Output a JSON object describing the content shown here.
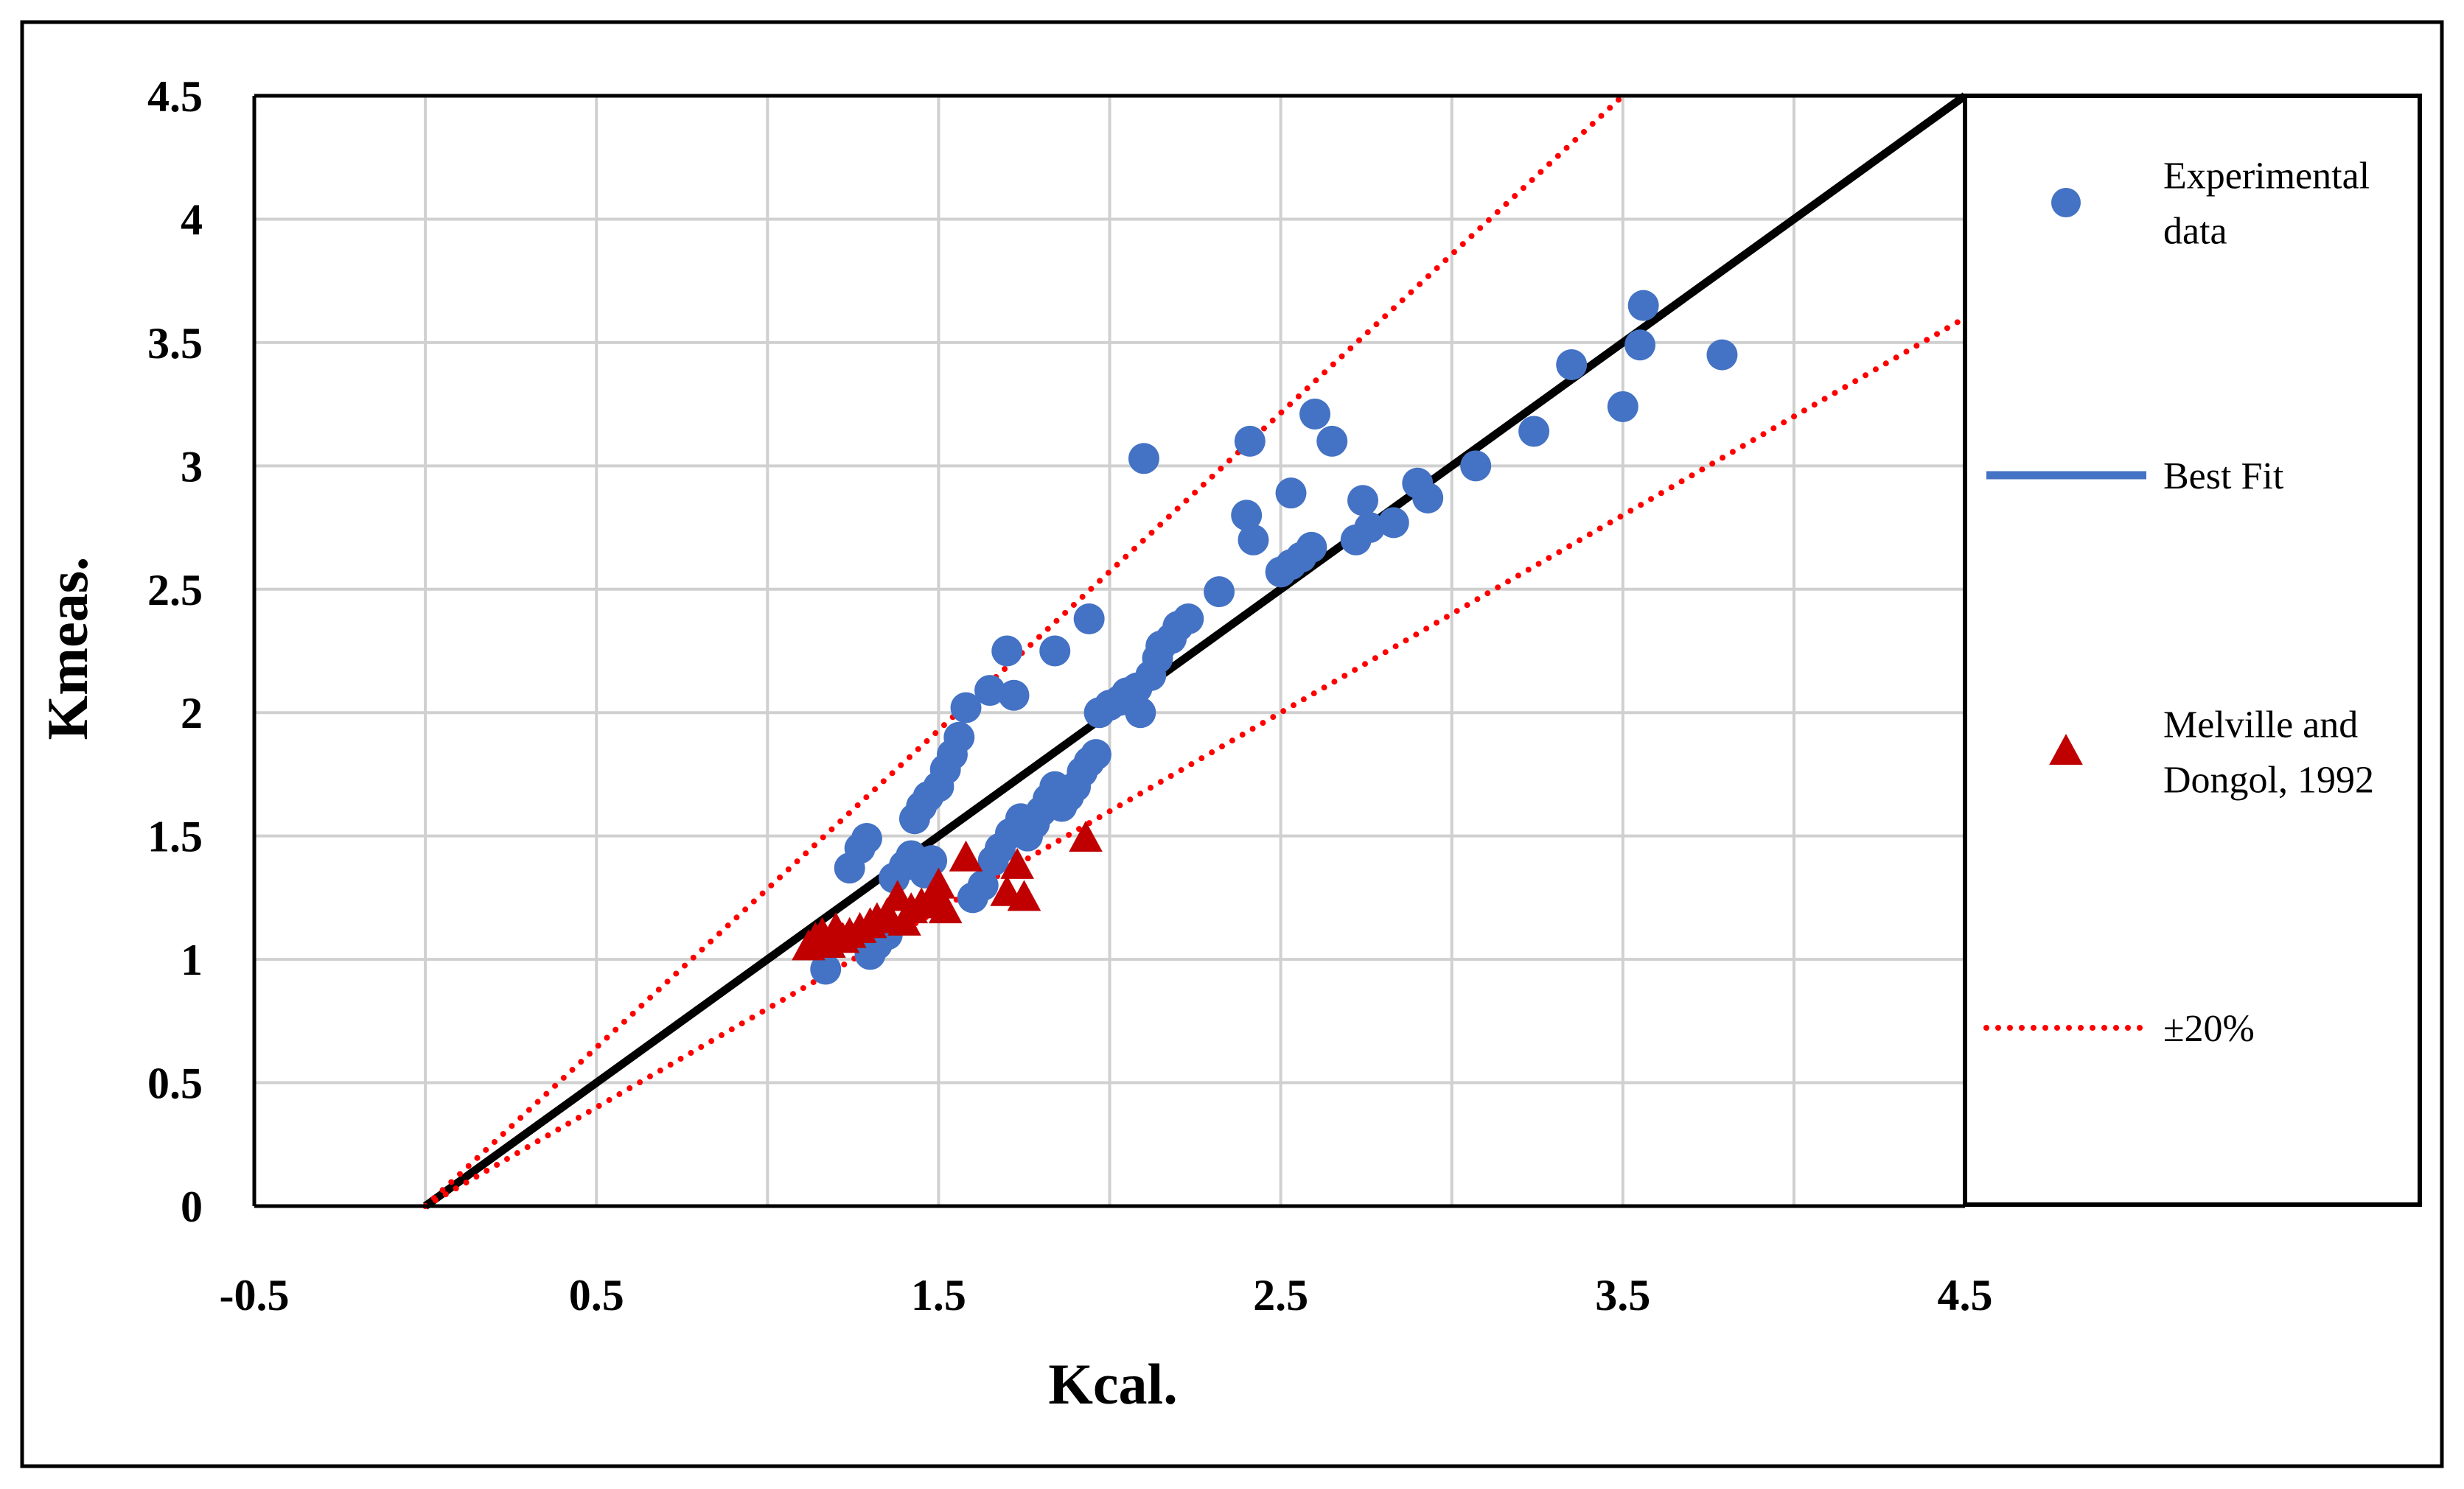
{
  "colors": {
    "frame": "#000000",
    "grid": "#d0d0d0",
    "experimental": "#4472c4",
    "melville": "#c00000",
    "best_fit_line": "#000000",
    "best_fit_legend": "#4472c4",
    "band": "#ff0000"
  },
  "chart_data": {
    "type": "scatter",
    "title": "",
    "xlabel": "Kcal.",
    "ylabel": "Kmeas.",
    "xlim": [
      -0.5,
      4.5
    ],
    "ylim": [
      0,
      4.5
    ],
    "grid": true,
    "legend_position": "right",
    "x_tick_labels": [
      "-0.5",
      "0.5",
      "1.5",
      "2.5",
      "3.5",
      "4.5"
    ],
    "y_tick_labels": [
      "0",
      "0.5",
      "1",
      "1.5",
      "2",
      "2.5",
      "3",
      "3.5",
      "4",
      "4.5"
    ],
    "legend": [
      {
        "key": "experimental",
        "lines": [
          "Experimental",
          "data"
        ]
      },
      {
        "key": "best_fit",
        "lines": [
          "Best Fit"
        ]
      },
      {
        "key": "melville",
        "lines": [
          "Melville and",
          "Dongol, 1992"
        ]
      },
      {
        "key": "band",
        "lines": [
          "±20%"
        ]
      }
    ],
    "series": [
      {
        "name": "Experimental data",
        "key": "experimental",
        "marker": "circle",
        "points": [
          [
            1.17,
            0.96
          ],
          [
            1.24,
            1.37
          ],
          [
            1.27,
            1.45
          ],
          [
            1.29,
            1.49
          ],
          [
            1.3,
            1.02
          ],
          [
            1.32,
            1.06
          ],
          [
            1.35,
            1.1
          ],
          [
            1.37,
            1.33
          ],
          [
            1.4,
            1.38
          ],
          [
            1.42,
            1.42
          ],
          [
            1.43,
            1.57
          ],
          [
            1.45,
            1.62
          ],
          [
            1.47,
            1.66
          ],
          [
            1.5,
            1.7
          ],
          [
            1.52,
            1.77
          ],
          [
            1.54,
            1.83
          ],
          [
            1.56,
            1.9
          ],
          [
            1.58,
            2.02
          ],
          [
            1.46,
            1.35
          ],
          [
            1.48,
            1.4
          ],
          [
            1.6,
            1.25
          ],
          [
            1.63,
            1.3
          ],
          [
            1.65,
            2.09
          ],
          [
            1.66,
            1.4
          ],
          [
            1.68,
            1.45
          ],
          [
            1.7,
            2.25
          ],
          [
            1.71,
            1.51
          ],
          [
            1.72,
            2.07
          ],
          [
            1.74,
            1.57
          ],
          [
            1.76,
            1.5
          ],
          [
            1.78,
            1.55
          ],
          [
            1.8,
            1.6
          ],
          [
            1.82,
            1.65
          ],
          [
            1.84,
            1.7
          ],
          [
            1.86,
            1.62
          ],
          [
            1.84,
            2.25
          ],
          [
            1.88,
            1.66
          ],
          [
            1.9,
            1.7
          ],
          [
            1.92,
            1.76
          ],
          [
            1.94,
            1.8
          ],
          [
            1.94,
            2.38
          ],
          [
            1.96,
            1.83
          ],
          [
            1.97,
            2.0
          ],
          [
            2.0,
            2.03
          ],
          [
            2.03,
            2.05
          ],
          [
            2.05,
            2.08
          ],
          [
            2.08,
            2.1
          ],
          [
            2.09,
            2.0
          ],
          [
            2.1,
            3.03
          ],
          [
            2.12,
            2.15
          ],
          [
            2.14,
            2.22
          ],
          [
            2.15,
            2.27
          ],
          [
            2.18,
            2.3
          ],
          [
            2.2,
            2.35
          ],
          [
            2.23,
            2.38
          ],
          [
            2.32,
            2.49
          ],
          [
            2.4,
            2.8
          ],
          [
            2.41,
            3.1
          ],
          [
            2.42,
            2.7
          ],
          [
            2.5,
            2.57
          ],
          [
            2.53,
            2.6
          ],
          [
            2.53,
            2.89
          ],
          [
            2.56,
            2.63
          ],
          [
            2.59,
            2.67
          ],
          [
            2.6,
            3.21
          ],
          [
            2.65,
            3.1
          ],
          [
            2.72,
            2.7
          ],
          [
            2.74,
            2.86
          ],
          [
            2.76,
            2.75
          ],
          [
            2.83,
            2.77
          ],
          [
            2.9,
            2.93
          ],
          [
            2.93,
            2.87
          ],
          [
            3.07,
            3.0
          ],
          [
            3.24,
            3.14
          ],
          [
            3.35,
            3.41
          ],
          [
            3.5,
            3.24
          ],
          [
            3.55,
            3.49
          ],
          [
            3.56,
            3.65
          ],
          [
            3.79,
            3.45
          ]
        ]
      },
      {
        "name": "Best Fit",
        "key": "best_fit",
        "style": "solid",
        "points": [
          [
            0,
            0
          ],
          [
            4.5,
            4.5
          ]
        ]
      },
      {
        "name": "Melville and Dongol, 1992",
        "key": "melville",
        "marker": "triangle",
        "points": [
          [
            1.12,
            1.05
          ],
          [
            1.14,
            1.08
          ],
          [
            1.16,
            1.1
          ],
          [
            1.18,
            1.06
          ],
          [
            1.2,
            1.12
          ],
          [
            1.22,
            1.08
          ],
          [
            1.24,
            1.1
          ],
          [
            1.27,
            1.12
          ],
          [
            1.3,
            1.14
          ],
          [
            1.32,
            1.16
          ],
          [
            1.35,
            1.18
          ],
          [
            1.38,
            1.25
          ],
          [
            1.4,
            1.15
          ],
          [
            1.42,
            1.2
          ],
          [
            1.45,
            1.22
          ],
          [
            1.48,
            1.25
          ],
          [
            1.5,
            1.3
          ],
          [
            1.52,
            1.2
          ],
          [
            1.58,
            1.41
          ],
          [
            1.7,
            1.27
          ],
          [
            1.73,
            1.38
          ],
          [
            1.75,
            1.25
          ],
          [
            1.93,
            1.49
          ]
        ]
      },
      {
        "name": "+20%",
        "key": "band",
        "style": "dotted",
        "points": [
          [
            0,
            0
          ],
          [
            3.5,
            4.5
          ]
        ]
      },
      {
        "name": "-20%",
        "key": "band",
        "style": "dotted",
        "points": [
          [
            0,
            0
          ],
          [
            4.5,
            3.6
          ]
        ]
      }
    ]
  }
}
